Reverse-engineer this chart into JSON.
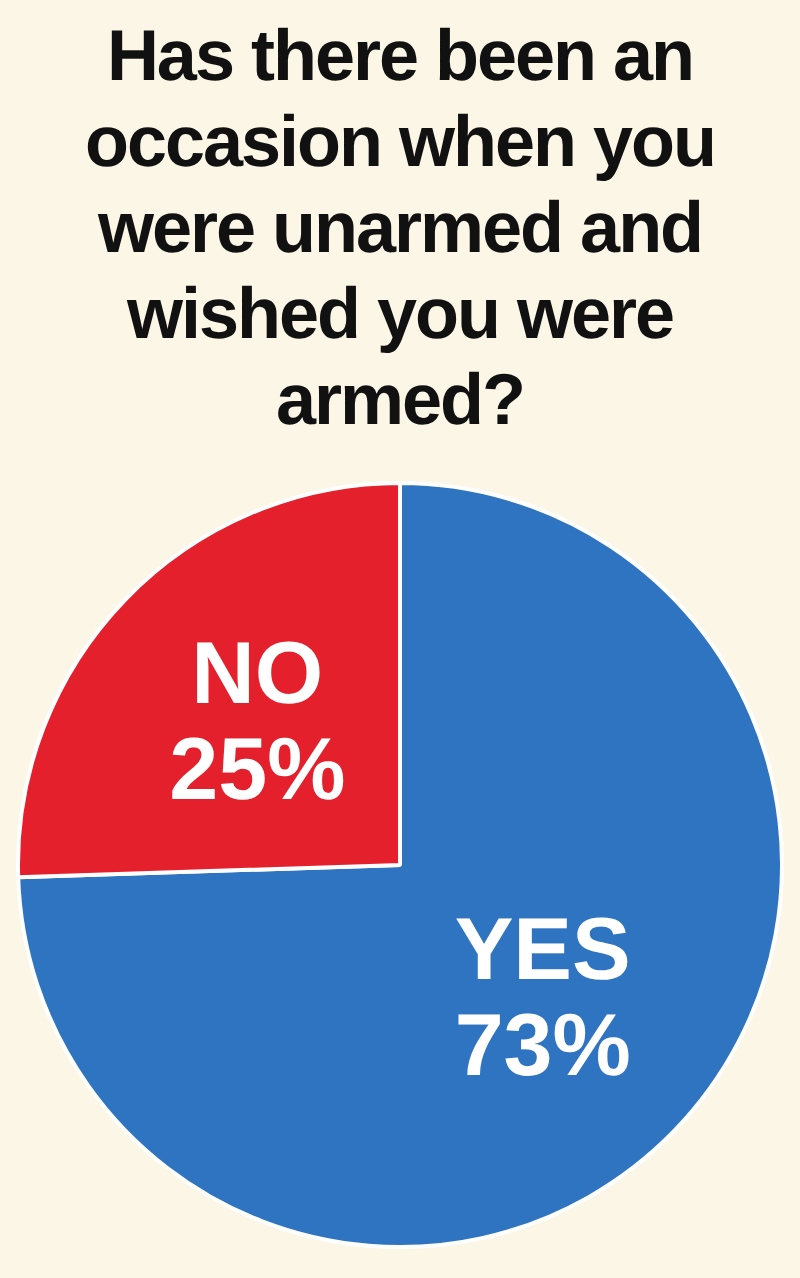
{
  "chart_data": {
    "type": "pie",
    "title": "Has there been an occasion when you were unarmed and wished you were armed?",
    "categories": [
      "YES",
      "NO"
    ],
    "values": [
      73,
      25
    ],
    "colors": [
      "#2f74c0",
      "#e3202b"
    ],
    "value_labels": [
      "73%",
      "25%"
    ]
  }
}
